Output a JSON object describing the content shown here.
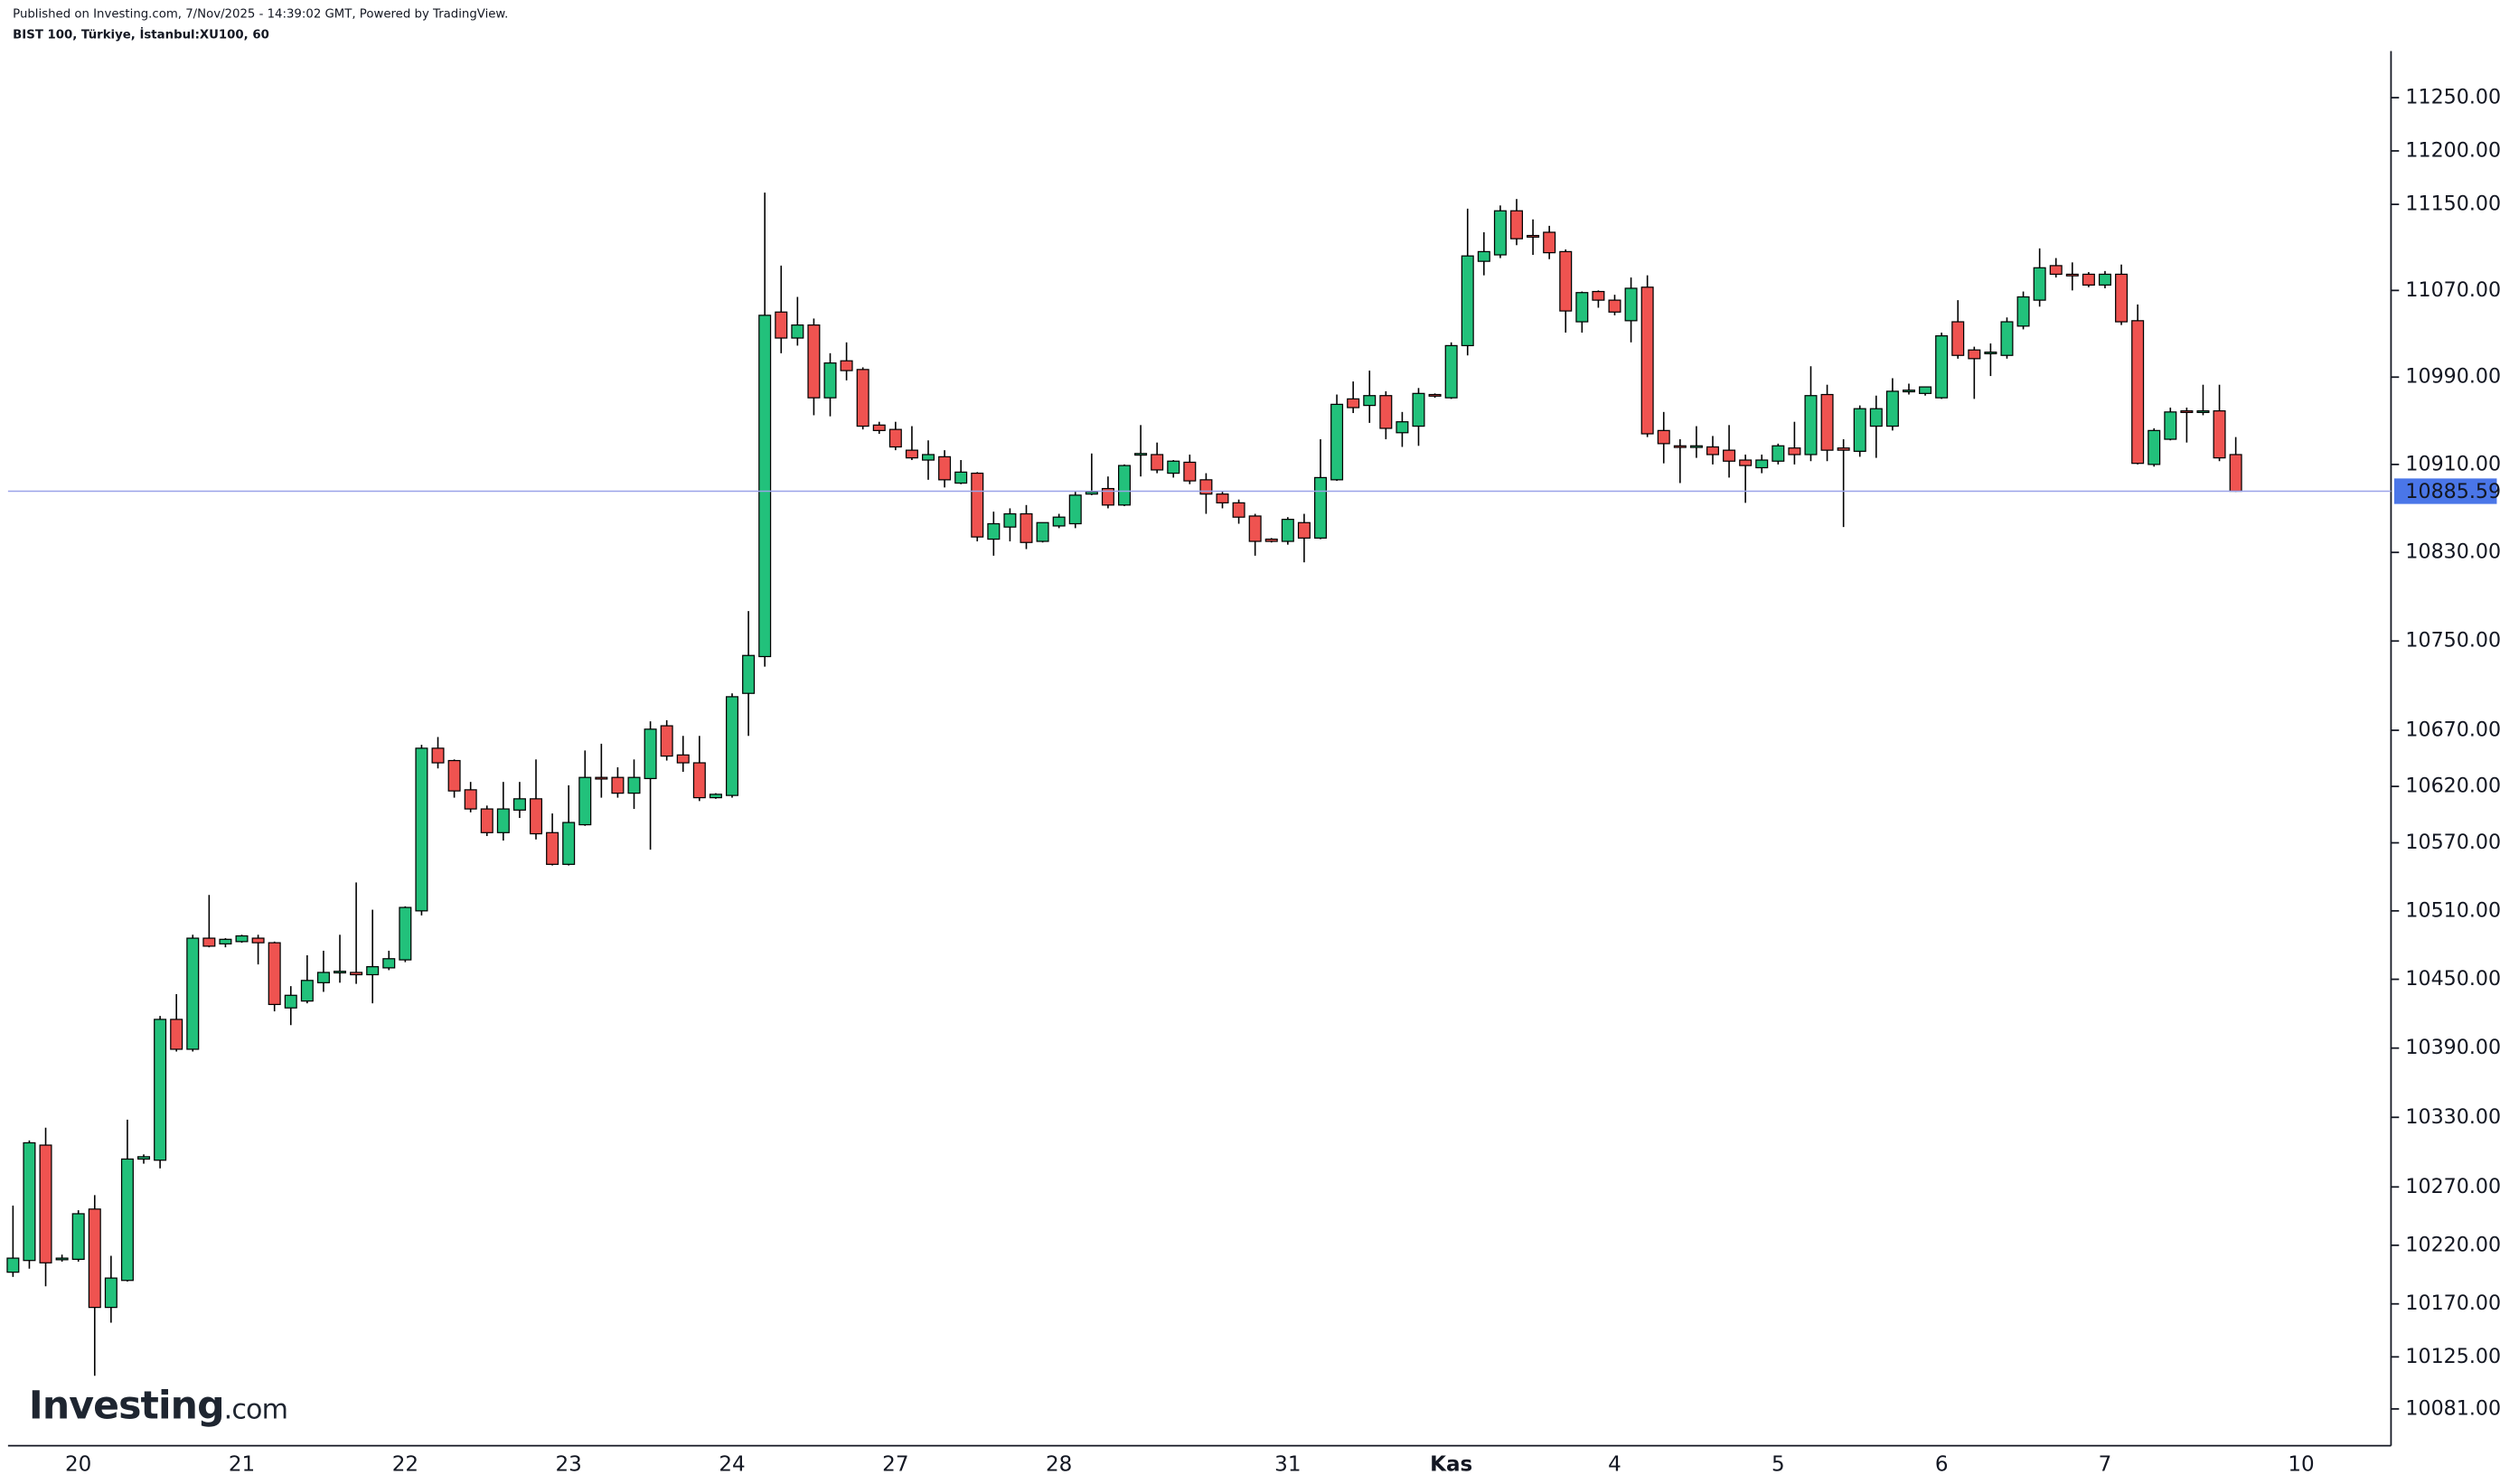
{
  "chart_data": {
    "type": "candlestick",
    "published": "Published on Investing.com, 7/Nov/2025 - 14:39:02 GMT, Powered by TradingView.",
    "title": "BIST 100, Türkiye, İstanbul:XU100, 60",
    "logo": "Investing",
    "logo_suffix": ".com",
    "log_scale": true,
    "up_color": "#22c17b",
    "down_color": "#ef5350",
    "price_line_color": "#4a76e8",
    "ylim": [
      10050,
      11294
    ],
    "yticks": [
      {
        "value": 11250,
        "label": "11250.00"
      },
      {
        "value": 11200,
        "label": "11200.00"
      },
      {
        "value": 11150,
        "label": "11150.00"
      },
      {
        "value": 11070,
        "label": "11070.00"
      },
      {
        "value": 10990,
        "label": "10990.00"
      },
      {
        "value": 10910,
        "label": "10910.00"
      },
      {
        "value": 10830,
        "label": "10830.00"
      },
      {
        "value": 10750,
        "label": "10750.00"
      },
      {
        "value": 10670,
        "label": "10670.00"
      },
      {
        "value": 10620,
        "label": "10620.00"
      },
      {
        "value": 10570,
        "label": "10570.00"
      },
      {
        "value": 10510,
        "label": "10510.00"
      },
      {
        "value": 10450,
        "label": "10450.00"
      },
      {
        "value": 10390,
        "label": "10390.00"
      },
      {
        "value": 10330,
        "label": "10330.00"
      },
      {
        "value": 10270,
        "label": "10270.00"
      },
      {
        "value": 10220,
        "label": "10220.00"
      },
      {
        "value": 10170,
        "label": "10170.00"
      },
      {
        "value": 10125,
        "label": "10125.00"
      },
      {
        "value": 10081,
        "label": "10081.00"
      }
    ],
    "categories": [
      null,
      null,
      null,
      null,
      "20",
      null,
      null,
      null,
      null,
      null,
      null,
      null,
      null,
      null,
      "21",
      null,
      null,
      null,
      null,
      null,
      null,
      null,
      null,
      null,
      "22",
      null,
      null,
      null,
      null,
      null,
      null,
      null,
      null,
      null,
      "23",
      null,
      null,
      null,
      null,
      null,
      null,
      null,
      null,
      null,
      "24",
      null,
      null,
      null,
      null,
      null,
      null,
      null,
      null,
      null,
      "27",
      null,
      null,
      null,
      null,
      null,
      null,
      null,
      null,
      null,
      "28",
      null,
      null,
      null,
      null,
      null,
      null,
      null,
      null,
      null,
      null,
      null,
      null,
      null,
      "31",
      null,
      null,
      null,
      null,
      null,
      null,
      null,
      null,
      null,
      "Kas",
      null,
      null,
      null,
      null,
      null,
      null,
      null,
      null,
      null,
      "4",
      null,
      null,
      null,
      null,
      null,
      null,
      null,
      null,
      null,
      "5",
      null,
      null,
      null,
      null,
      null,
      null,
      null,
      null,
      null,
      "6",
      null,
      null,
      null,
      null,
      null,
      null,
      null,
      null,
      null,
      "7",
      null,
      null,
      null,
      null,
      null,
      null,
      null,
      null,
      null,
      null,
      null,
      "10",
      null,
      null,
      null,
      null,
      null
    ],
    "open": [
      10197,
      10207,
      10306,
      10208,
      10208,
      10251,
      10167,
      10190,
      10294,
      10293,
      10415,
      10389,
      10486,
      10481,
      10483,
      10486,
      10482,
      10425,
      10431,
      10447,
      10456,
      10456,
      10454,
      10460,
      10467,
      10510,
      10654,
      10643,
      10617,
      10600,
      10579,
      10599,
      10609,
      10579,
      10551,
      10586,
      10628,
      10628,
      10614,
      10627,
      10674,
      10648,
      10641,
      10610,
      10612,
      10703,
      10736,
      11050,
      11026,
      11038,
      10971,
      11005,
      10997,
      10946,
      10942,
      10923,
      10914,
      10917,
      10893,
      10902,
      10842,
      10853,
      10865,
      10840,
      10854,
      10856,
      10883,
      10888,
      10873,
      10919,
      10919,
      10902,
      10912,
      10896,
      10883,
      10875,
      10863,
      10842,
      10840,
      10857,
      10843,
      10896,
      10970,
      10964,
      10973,
      10939,
      10945,
      10974,
      10971,
      11019,
      11097,
      11103,
      11144,
      11121,
      11124,
      11106,
      11041,
      11069,
      11061,
      11042,
      11073,
      10941,
      10927,
      10926,
      10926,
      10923,
      10914,
      10907,
      10913,
      10925,
      10919,
      10974,
      10925,
      10922,
      10945,
      10945,
      10977,
      10975,
      10971,
      11041,
      11015,
      11012,
      11010,
      11037,
      11061,
      11093,
      11085,
      11085,
      11075,
      11085,
      11042,
      10910,
      10933,
      10959,
      10958,
      10959,
      10919,
      null,
      null,
      null,
      null,
      null,
      null,
      null,
      null,
      null
    ],
    "high": [
      10254,
      10310,
      10321,
      10212,
      10250,
      10263,
      10211,
      10328,
      10298,
      10418,
      10437,
      10489,
      10524,
      10486,
      10489,
      10489,
      10483,
      10444,
      10471,
      10475,
      10489,
      10535,
      10511,
      10475,
      10514,
      10657,
      10664,
      10644,
      10624,
      10603,
      10624,
      10624,
      10644,
      10596,
      10621,
      10652,
      10658,
      10637,
      10644,
      10678,
      10679,
      10665,
      10665,
      10614,
      10703,
      10777,
      11161,
      11093,
      11064,
      11044,
      11012,
      11022,
      10999,
      10949,
      10949,
      10945,
      10932,
      10923,
      10914,
      10903,
      10867,
      10870,
      10873,
      10857,
      10865,
      10885,
      10920,
      10899,
      10910,
      10946,
      10930,
      10914,
      10919,
      10902,
      10886,
      10878,
      10865,
      10843,
      10862,
      10865,
      10933,
      10974,
      10986,
      10996,
      10977,
      10958,
      10980,
      10975,
      11022,
      11146,
      11124,
      11149,
      11155,
      11136,
      11130,
      11108,
      11069,
      11070,
      11066,
      11082,
      11084,
      10958,
      10933,
      10945,
      10936,
      10946,
      10919,
      10919,
      10929,
      10949,
      11000,
      10983,
      10933,
      10964,
      10973,
      10989,
      10984,
      10981,
      11031,
      11061,
      11018,
      11021,
      11045,
      11069,
      11109,
      11100,
      11096,
      11087,
      11088,
      11094,
      11057,
      10943,
      10962,
      10962,
      10983,
      10983,
      10935,
      null,
      null,
      null,
      null,
      null,
      null,
      null,
      null,
      null
    ],
    "low": [
      10193,
      10200,
      10185,
      10206,
      10206,
      10109,
      10154,
      10189,
      10290,
      10286,
      10387,
      10387,
      10478,
      10478,
      10482,
      10463,
      10422,
      10410,
      10429,
      10439,
      10447,
      10446,
      10429,
      10458,
      10465,
      10506,
      10636,
      10610,
      10597,
      10576,
      10572,
      10592,
      10573,
      10550,
      10550,
      10585,
      10610,
      10610,
      10600,
      10564,
      10643,
      10633,
      10607,
      10609,
      10610,
      10665,
      10727,
      11012,
      11019,
      10955,
      10954,
      10987,
      10942,
      10938,
      10923,
      10914,
      10896,
      10889,
      10892,
      10840,
      10827,
      10840,
      10833,
      10839,
      10852,
      10852,
      10882,
      10870,
      10872,
      10899,
      10902,
      10898,
      10892,
      10865,
      10870,
      10856,
      10827,
      10839,
      10837,
      10821,
      10842,
      10895,
      10957,
      10948,
      10933,
      10926,
      10927,
      10971,
      10970,
      11010,
      11084,
      11100,
      11112,
      11103,
      11099,
      11031,
      11031,
      11054,
      11047,
      11022,
      10935,
      10911,
      10893,
      10916,
      10910,
      10898,
      10875,
      10902,
      10910,
      10910,
      10913,
      10913,
      10853,
      10917,
      10916,
      10941,
      10974,
      10973,
      10970,
      11007,
      10970,
      10991,
      11007,
      11034,
      11055,
      11082,
      11070,
      11073,
      11072,
      11038,
      10910,
      10908,
      10932,
      10930,
      10955,
      10913,
      10885,
      null,
      null,
      null,
      null,
      null,
      null,
      null,
      null,
      null
    ],
    "close": [
      10209,
      10308,
      10205,
      10209,
      10247,
      10167,
      10192,
      10294,
      10296,
      10415,
      10389,
      10486,
      10479,
      10485,
      10488,
      10482,
      10428,
      10436,
      10449,
      10456,
      10457,
      10454,
      10461,
      10468,
      10513,
      10654,
      10641,
      10616,
      10600,
      10579,
      10600,
      10609,
      10578,
      10551,
      10588,
      10628,
      10627,
      10614,
      10628,
      10671,
      10647,
      10641,
      10610,
      10613,
      10700,
      10737,
      11047,
      11026,
      11038,
      10971,
      11003,
      10996,
      10945,
      10941,
      10926,
      10916,
      10919,
      10896,
      10903,
      10844,
      10856,
      10865,
      10839,
      10857,
      10862,
      10882,
      10885,
      10873,
      10909,
      10920,
      10905,
      10913,
      10895,
      10883,
      10875,
      10862,
      10840,
      10840,
      10860,
      10843,
      10898,
      10965,
      10962,
      10973,
      10943,
      10949,
      10975,
      10973,
      11019,
      11102,
      11106,
      11144,
      11118,
      11120,
      11105,
      11051,
      11068,
      11061,
      11050,
      11072,
      10938,
      10929,
      10926,
      10927,
      10919,
      10913,
      10909,
      10914,
      10927,
      10919,
      10973,
      10923,
      10923,
      10961,
      10961,
      10977,
      10978,
      10981,
      11028,
      11010,
      11007,
      11013,
      11041,
      11064,
      11091,
      11085,
      11084,
      11075,
      11085,
      11041,
      10911,
      10941,
      10958,
      10958,
      10959,
      10916,
      10885.59,
      null,
      null,
      null,
      null,
      null,
      null,
      null,
      null,
      null
    ]
  }
}
